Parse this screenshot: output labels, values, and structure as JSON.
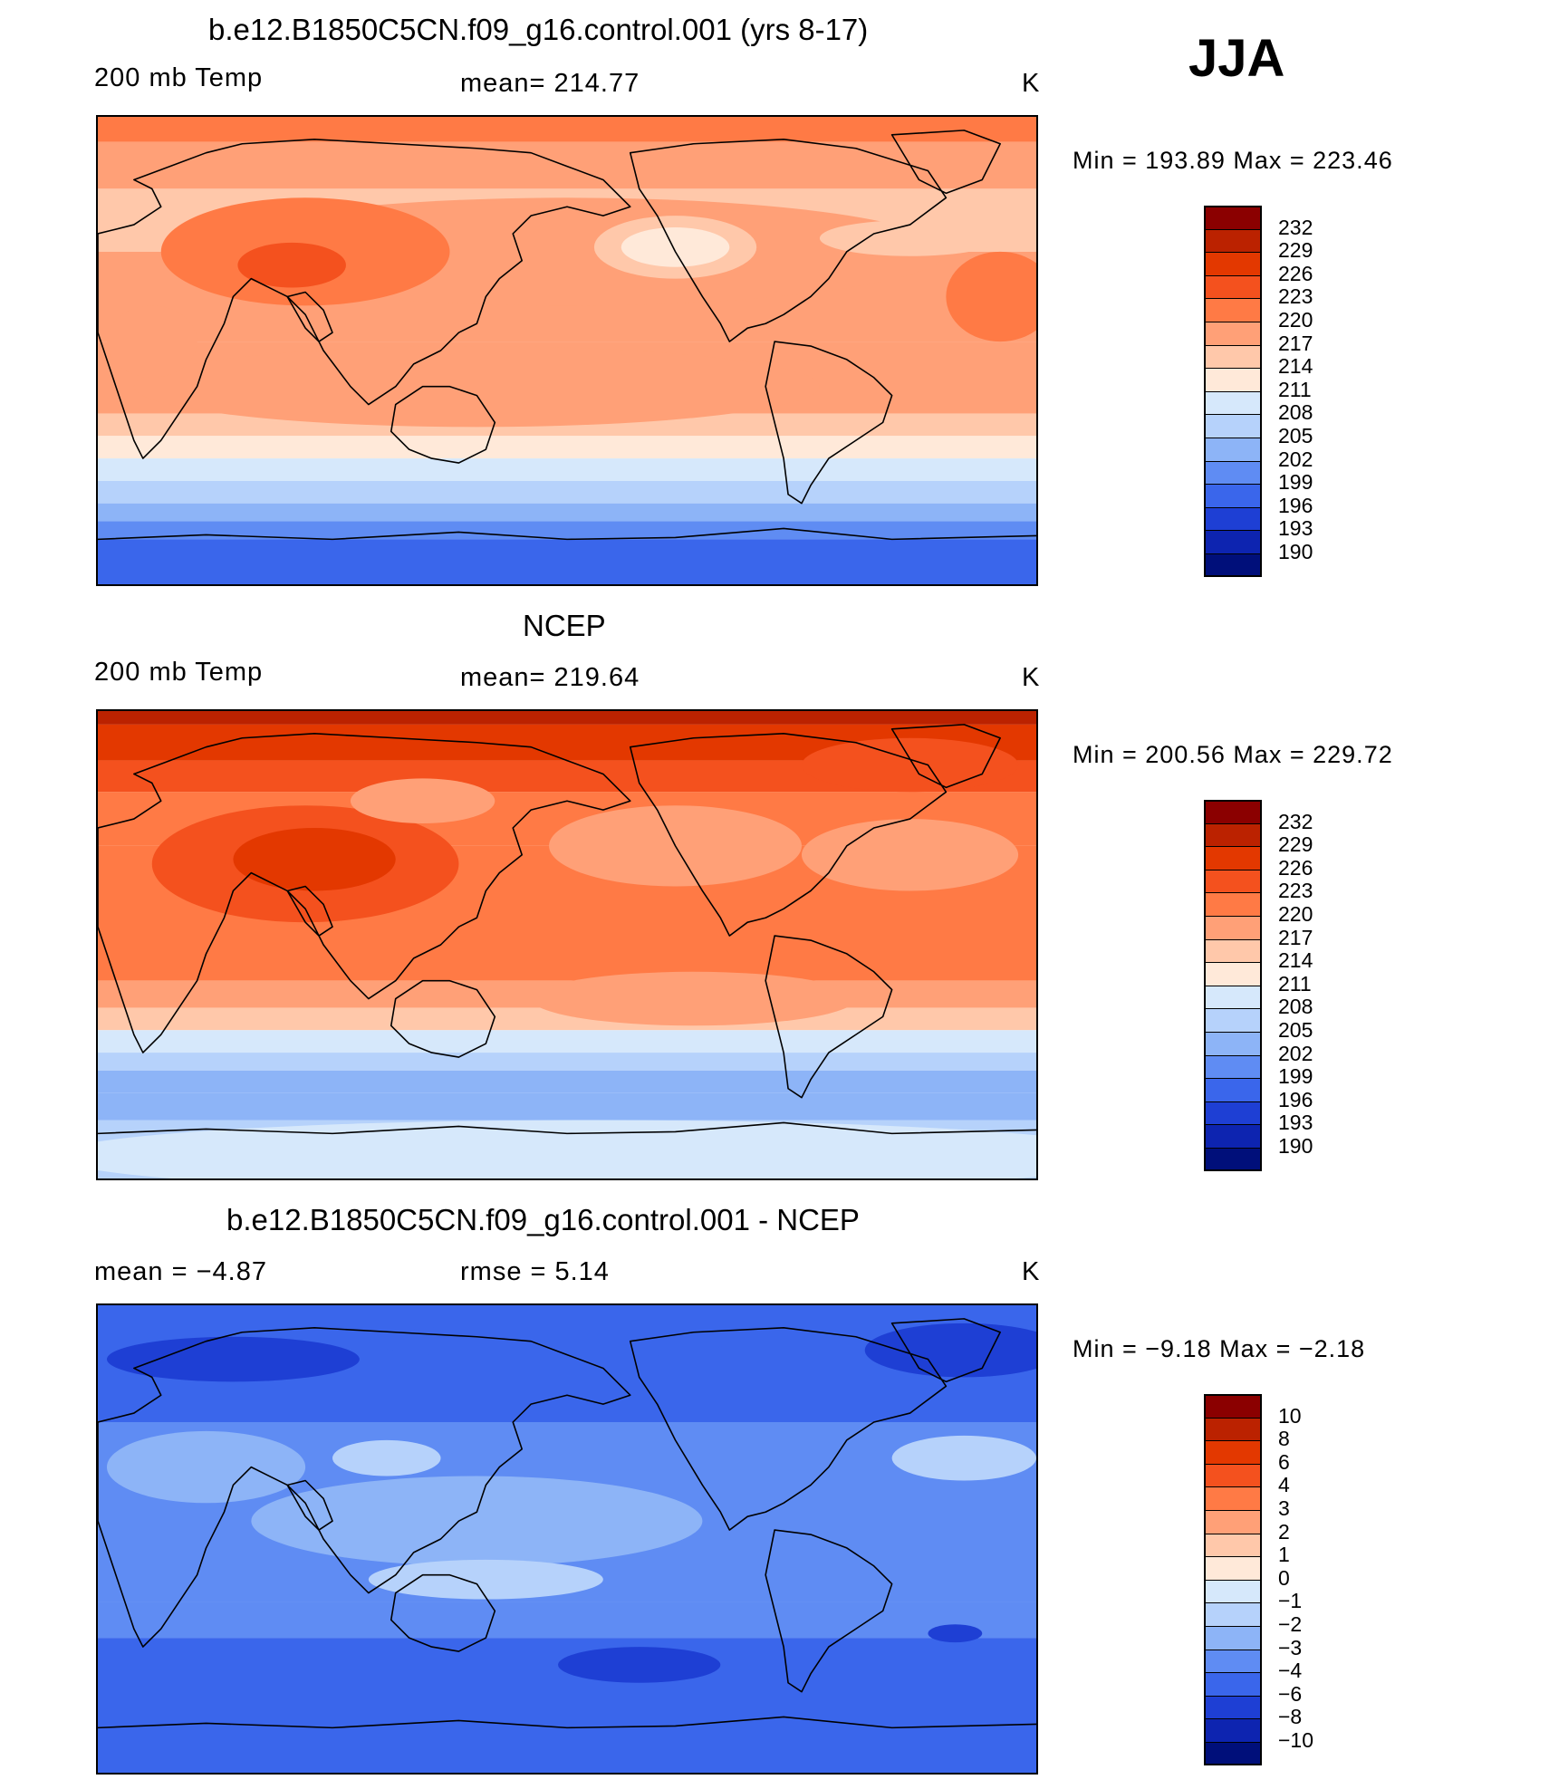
{
  "season": "JJA",
  "panels": [
    {
      "title": "b.e12.B1850C5CN.f09_g16.control.001 (yrs 8-17)",
      "left_label": "200 mb Temp",
      "center_label": "mean=  214.77",
      "units": "K",
      "minmax": "Min  =  193.89  Max  =  223.46",
      "scheme": "model",
      "colorbar": {
        "labels": [
          "232",
          "229",
          "226",
          "223",
          "220",
          "217",
          "214",
          "211",
          "208",
          "205",
          "202",
          "199",
          "196",
          "193",
          "190"
        ],
        "colors": [
          "#8b0000",
          "#bb2200",
          "#e33800",
          "#f4511e",
          "#ff7a45",
          "#ffa077",
          "#ffc8aa",
          "#ffe9d9",
          "#d6e8fb",
          "#b6d2fb",
          "#8db4f7",
          "#5f8cf3",
          "#3a66eb",
          "#1e3fd4",
          "#0d24b0",
          "#000f7a"
        ]
      }
    },
    {
      "title": "NCEP",
      "left_label": "200 mb Temp",
      "center_label": "mean=  219.64",
      "units": "K",
      "minmax": "Min  =  200.56  Max  =  229.72",
      "scheme": "obs",
      "colorbar": {
        "labels": [
          "232",
          "229",
          "226",
          "223",
          "220",
          "217",
          "214",
          "211",
          "208",
          "205",
          "202",
          "199",
          "196",
          "193",
          "190"
        ],
        "colors": [
          "#8b0000",
          "#bb2200",
          "#e33800",
          "#f4511e",
          "#ff7a45",
          "#ffa077",
          "#ffc8aa",
          "#ffe9d9",
          "#d6e8fb",
          "#b6d2fb",
          "#8db4f7",
          "#5f8cf3",
          "#3a66eb",
          "#1e3fd4",
          "#0d24b0",
          "#000f7a"
        ]
      }
    },
    {
      "title": "b.e12.B1850C5CN.f09_g16.control.001 - NCEP",
      "left_label": "mean  =     −4.87",
      "center_label": "rmse  =      5.14",
      "units": "K",
      "minmax": "Min  =    −9.18  Max  =    −2.18",
      "scheme": "diff",
      "colorbar": {
        "labels": [
          "10",
          "8",
          "6",
          "4",
          "3",
          "2",
          "1",
          "0",
          "−1",
          "−2",
          "−3",
          "−4",
          "−6",
          "−8",
          "−10"
        ],
        "colors": [
          "#8b0000",
          "#bb2200",
          "#e33800",
          "#f4511e",
          "#ff7a45",
          "#ffa077",
          "#ffc8aa",
          "#ffe9d9",
          "#d6e8fb",
          "#b6d2fb",
          "#8db4f7",
          "#5f8cf3",
          "#3a66eb",
          "#1e3fd4",
          "#0d24b0",
          "#000f7a"
        ]
      }
    }
  ]
}
